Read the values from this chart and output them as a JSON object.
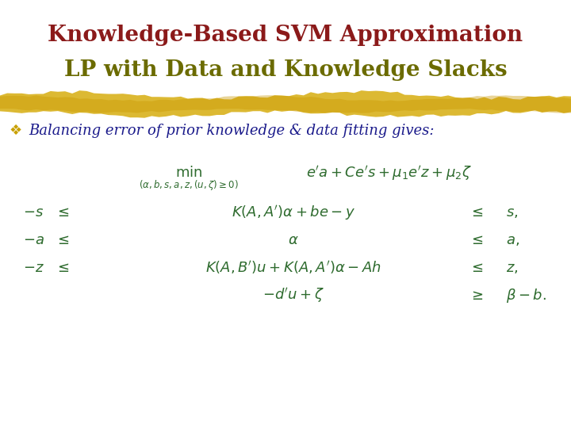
{
  "title_line1": "Knowledge-Based SVM Approximation",
  "title_line2": "LP with Data and Knowledge Slacks",
  "title_color": "#8B1A1A",
  "title2_color": "#6B6B00",
  "bg_color": "#FFFFFF",
  "bullet_color": "#C8A000",
  "bullet_text_color": "#1A1A8B",
  "math_color": "#2E6B2E",
  "bullet_text": "Balancing error of prior knowledge & data fitting gives:",
  "figsize": [
    7.2,
    5.4
  ],
  "dpi": 100
}
